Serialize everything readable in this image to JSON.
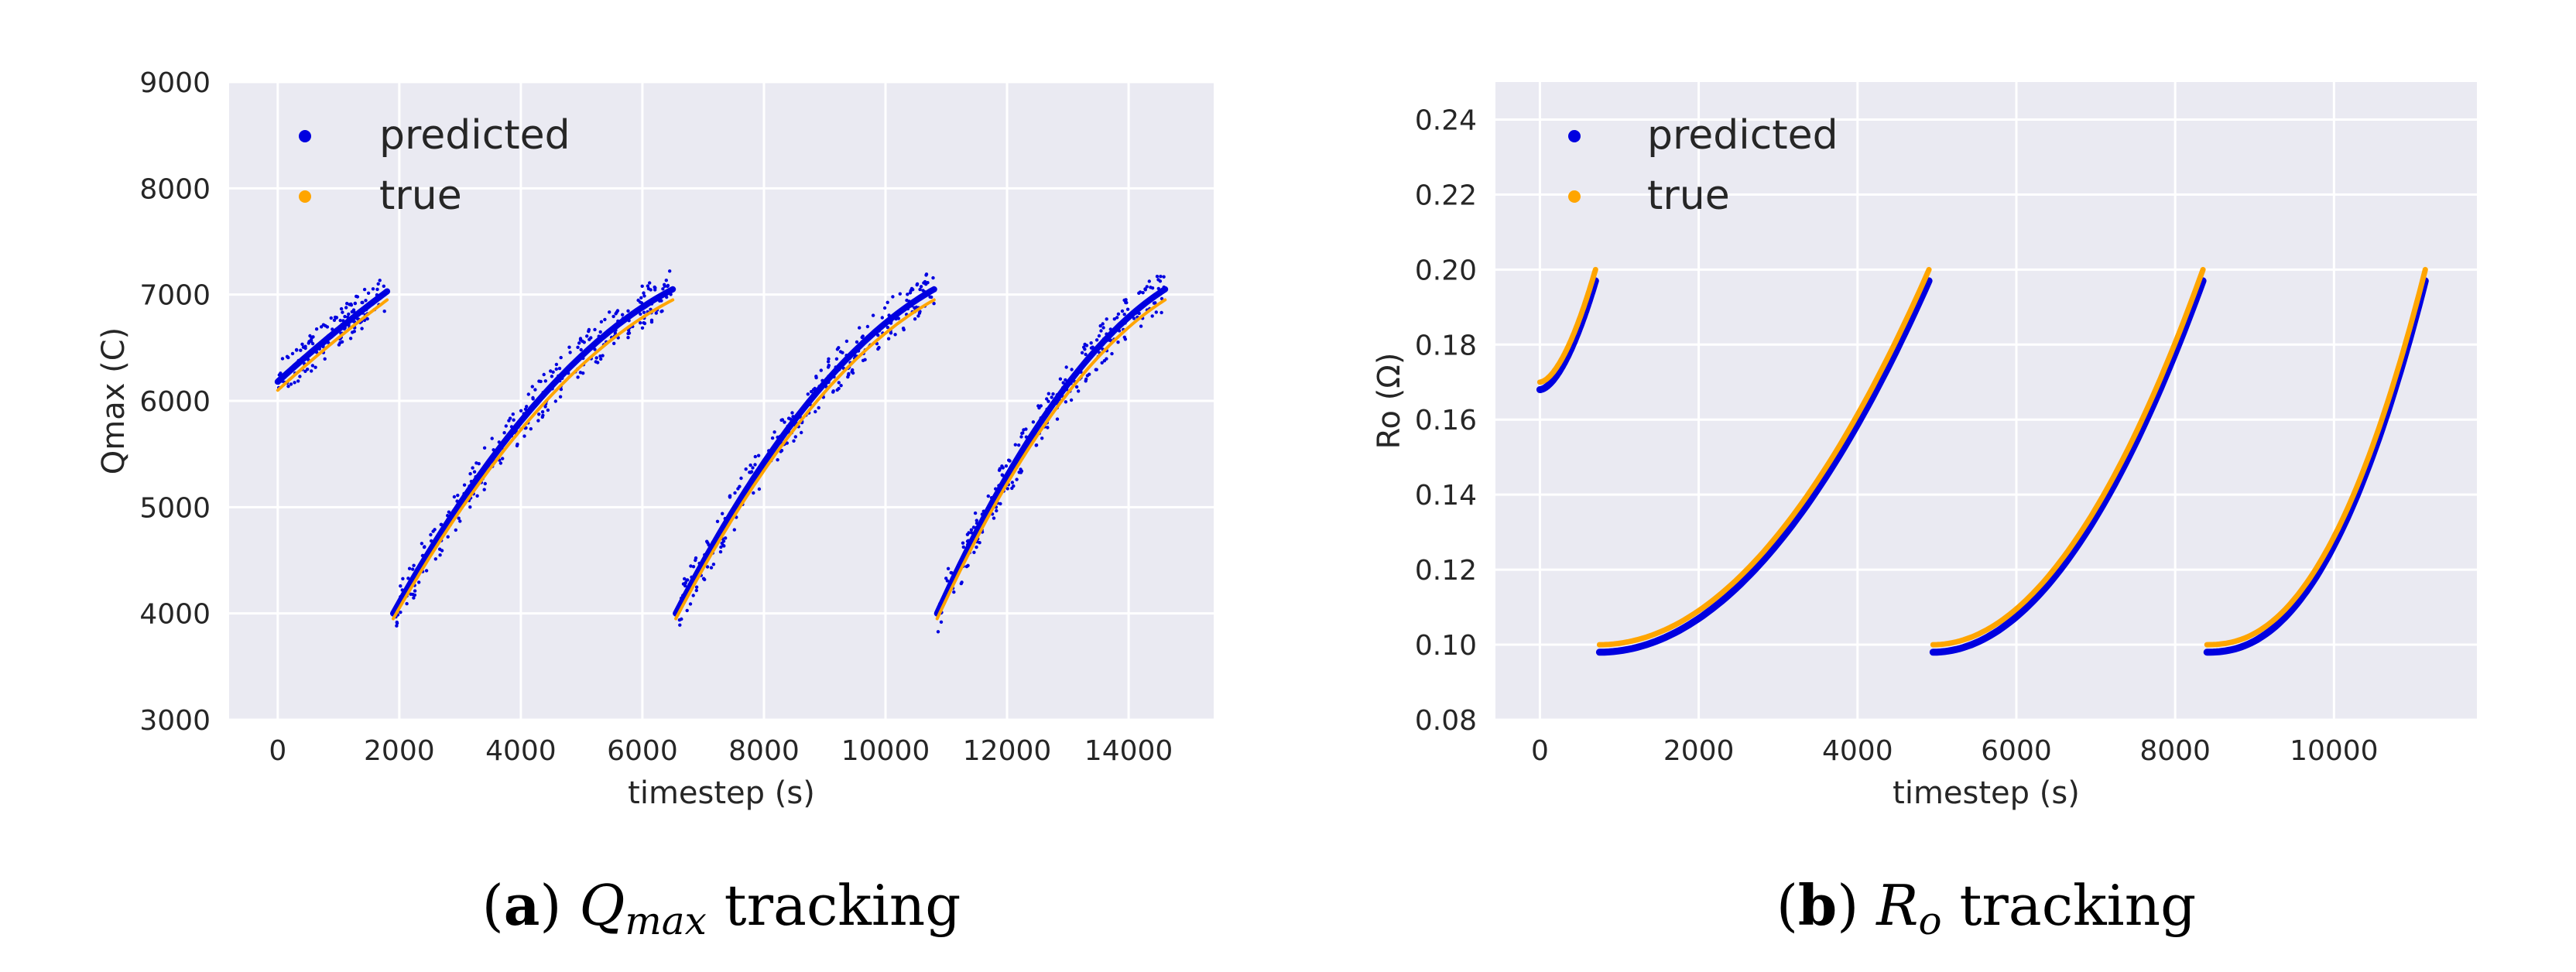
{
  "chart_data": [
    {
      "type": "scatter",
      "panel_letter": "a",
      "caption_main": "Q",
      "caption_sub": "max",
      "caption_rest": "tracking",
      "xlabel": "timestep (s)",
      "ylabel": "Qmax (C)",
      "xlim": [
        -800,
        15400
      ],
      "ylim": [
        3000,
        9000
      ],
      "xticks": [
        0,
        2000,
        4000,
        6000,
        8000,
        10000,
        12000,
        14000
      ],
      "yticks": [
        3000,
        4000,
        5000,
        6000,
        7000,
        8000,
        9000
      ],
      "grid": true,
      "legend_position": "top-left",
      "series": [
        {
          "name": "predicted",
          "color": "#0000e0",
          "segments": [
            {
              "x_start": 0,
              "x_end": 1800,
              "y_start": 6180,
              "y_end": 7030,
              "spread": 180,
              "curve": 0.1
            },
            {
              "x_start": 1900,
              "x_end": 6500,
              "y_start": 4000,
              "y_end": 7050,
              "spread": 200,
              "curve": 0.55
            },
            {
              "x_start": 6550,
              "x_end": 10800,
              "y_start": 4000,
              "y_end": 7050,
              "spread": 200,
              "curve": 0.55
            },
            {
              "x_start": 10850,
              "x_end": 14600,
              "y_start": 4000,
              "y_end": 7050,
              "spread": 200,
              "curve": 0.55
            }
          ]
        },
        {
          "name": "true",
          "color": "#ffa500",
          "segments": [
            {
              "x_start": 0,
              "x_end": 1800,
              "y_start": 6100,
              "y_end": 6950,
              "spread": 0,
              "curve": 0.1
            },
            {
              "x_start": 1900,
              "x_end": 6500,
              "y_start": 3950,
              "y_end": 6950,
              "spread": 0,
              "curve": 0.55
            },
            {
              "x_start": 6550,
              "x_end": 10800,
              "y_start": 3950,
              "y_end": 6950,
              "spread": 0,
              "curve": 0.55
            },
            {
              "x_start": 10850,
              "x_end": 14600,
              "y_start": 3950,
              "y_end": 6950,
              "spread": 0,
              "curve": 0.55
            }
          ]
        }
      ]
    },
    {
      "type": "scatter",
      "panel_letter": "b",
      "caption_main": "R",
      "caption_sub": "o",
      "caption_rest": "tracking",
      "xlabel": "timestep (s)",
      "ylabel": "Ro (Ω)",
      "xlim": [
        -560,
        11800
      ],
      "ylim": [
        0.08,
        0.25
      ],
      "xticks": [
        0,
        2000,
        4000,
        6000,
        8000,
        10000
      ],
      "yticks": [
        0.08,
        0.1,
        0.12,
        0.14,
        0.16,
        0.18,
        0.2,
        0.22,
        0.24
      ],
      "grid": true,
      "legend_position": "top-left",
      "series": [
        {
          "name": "predicted",
          "color": "#0000e0",
          "segments": [
            {
              "x_start": 0,
              "x_end": 700,
              "y_start": 0.168,
              "y_end": 0.197,
              "power": 1.7
            },
            {
              "x_start": 750,
              "x_end": 4900,
              "y_start": 0.098,
              "y_end": 0.197,
              "power": 2.0
            },
            {
              "x_start": 4950,
              "x_end": 8350,
              "y_start": 0.098,
              "y_end": 0.197,
              "power": 2.0
            },
            {
              "x_start": 8400,
              "x_end": 11150,
              "y_start": 0.098,
              "y_end": 0.197,
              "power": 2.3
            }
          ]
        },
        {
          "name": "true",
          "color": "#ffa500",
          "segments": [
            {
              "x_start": 0,
              "x_end": 700,
              "y_start": 0.17,
              "y_end": 0.2,
              "power": 1.7
            },
            {
              "x_start": 750,
              "x_end": 4900,
              "y_start": 0.1,
              "y_end": 0.2,
              "power": 2.0
            },
            {
              "x_start": 4950,
              "x_end": 8350,
              "y_start": 0.1,
              "y_end": 0.2,
              "power": 2.0
            },
            {
              "x_start": 8400,
              "x_end": 11150,
              "y_start": 0.1,
              "y_end": 0.2,
              "power": 2.3
            }
          ]
        }
      ]
    }
  ]
}
